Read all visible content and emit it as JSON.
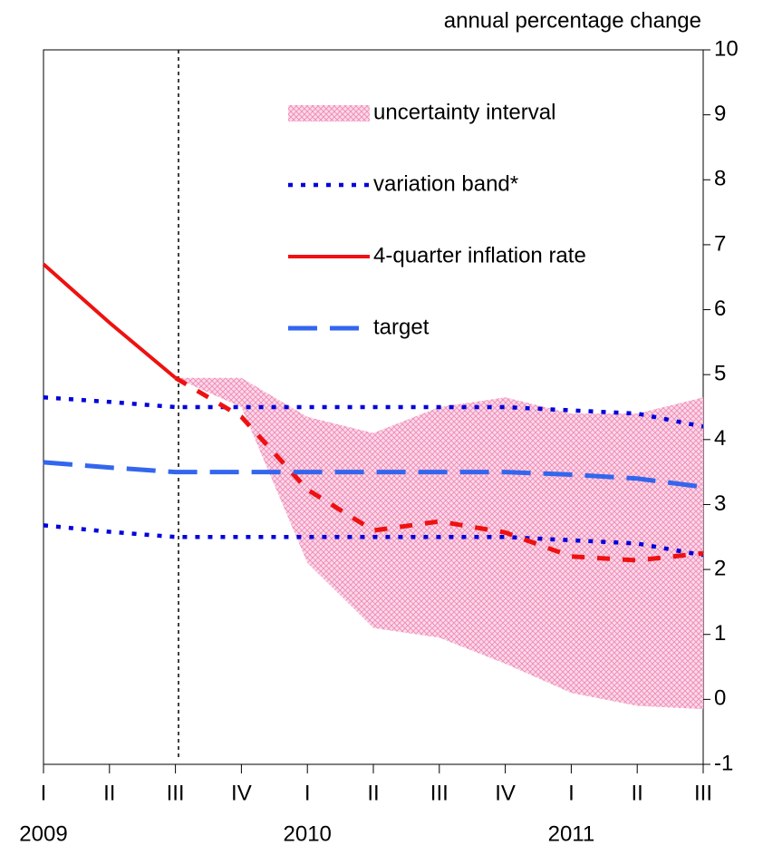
{
  "chart_data": {
    "type": "line",
    "y_axis_label": "annual percentage change",
    "categories": [
      "I",
      "II",
      "III",
      "IV",
      "I",
      "II",
      "III",
      "IV",
      "I",
      "II",
      "III"
    ],
    "year_labels": [
      "2009",
      null,
      null,
      null,
      "2010",
      null,
      null,
      null,
      "2011",
      null,
      null
    ],
    "ylim": [
      -1,
      10
    ],
    "yticks": [
      -1,
      0,
      1,
      2,
      3,
      4,
      5,
      6,
      7,
      8,
      9,
      10
    ],
    "legend": "upper right",
    "series": [
      {
        "name": "uncertainty interval",
        "color": "#f4a3c6",
        "style": "band",
        "upper": [
          null,
          null,
          4.95,
          4.95,
          4.35,
          4.1,
          4.5,
          4.65,
          4.4,
          4.4,
          4.65
        ],
        "lower": [
          null,
          null,
          4.95,
          4.5,
          2.1,
          1.1,
          0.95,
          0.55,
          0.1,
          -0.1,
          -0.15
        ]
      },
      {
        "name": "variation band*",
        "color": "#0000dd",
        "style": "dotted",
        "upper": [
          4.65,
          4.58,
          4.5,
          4.5,
          4.5,
          4.5,
          4.5,
          4.5,
          4.45,
          4.4,
          4.2
        ],
        "lower": [
          2.68,
          2.58,
          2.5,
          2.5,
          2.5,
          2.5,
          2.5,
          2.5,
          2.45,
          2.4,
          2.22
        ]
      },
      {
        "name": "4-quarter inflation rate",
        "color": "#ee1111",
        "style": "solid",
        "values": [
          6.7,
          5.8,
          4.95,
          null,
          null,
          null,
          null,
          null,
          null,
          null,
          null
        ],
        "forecast": [
          null,
          null,
          4.95,
          4.35,
          3.23,
          2.6,
          2.74,
          2.57,
          2.2,
          2.14,
          2.25
        ]
      },
      {
        "name": "target",
        "color": "#3366ee",
        "style": "dashed",
        "values": [
          3.65,
          3.57,
          3.5,
          3.5,
          3.5,
          3.5,
          3.5,
          3.5,
          3.46,
          3.4,
          3.27
        ]
      }
    ]
  }
}
